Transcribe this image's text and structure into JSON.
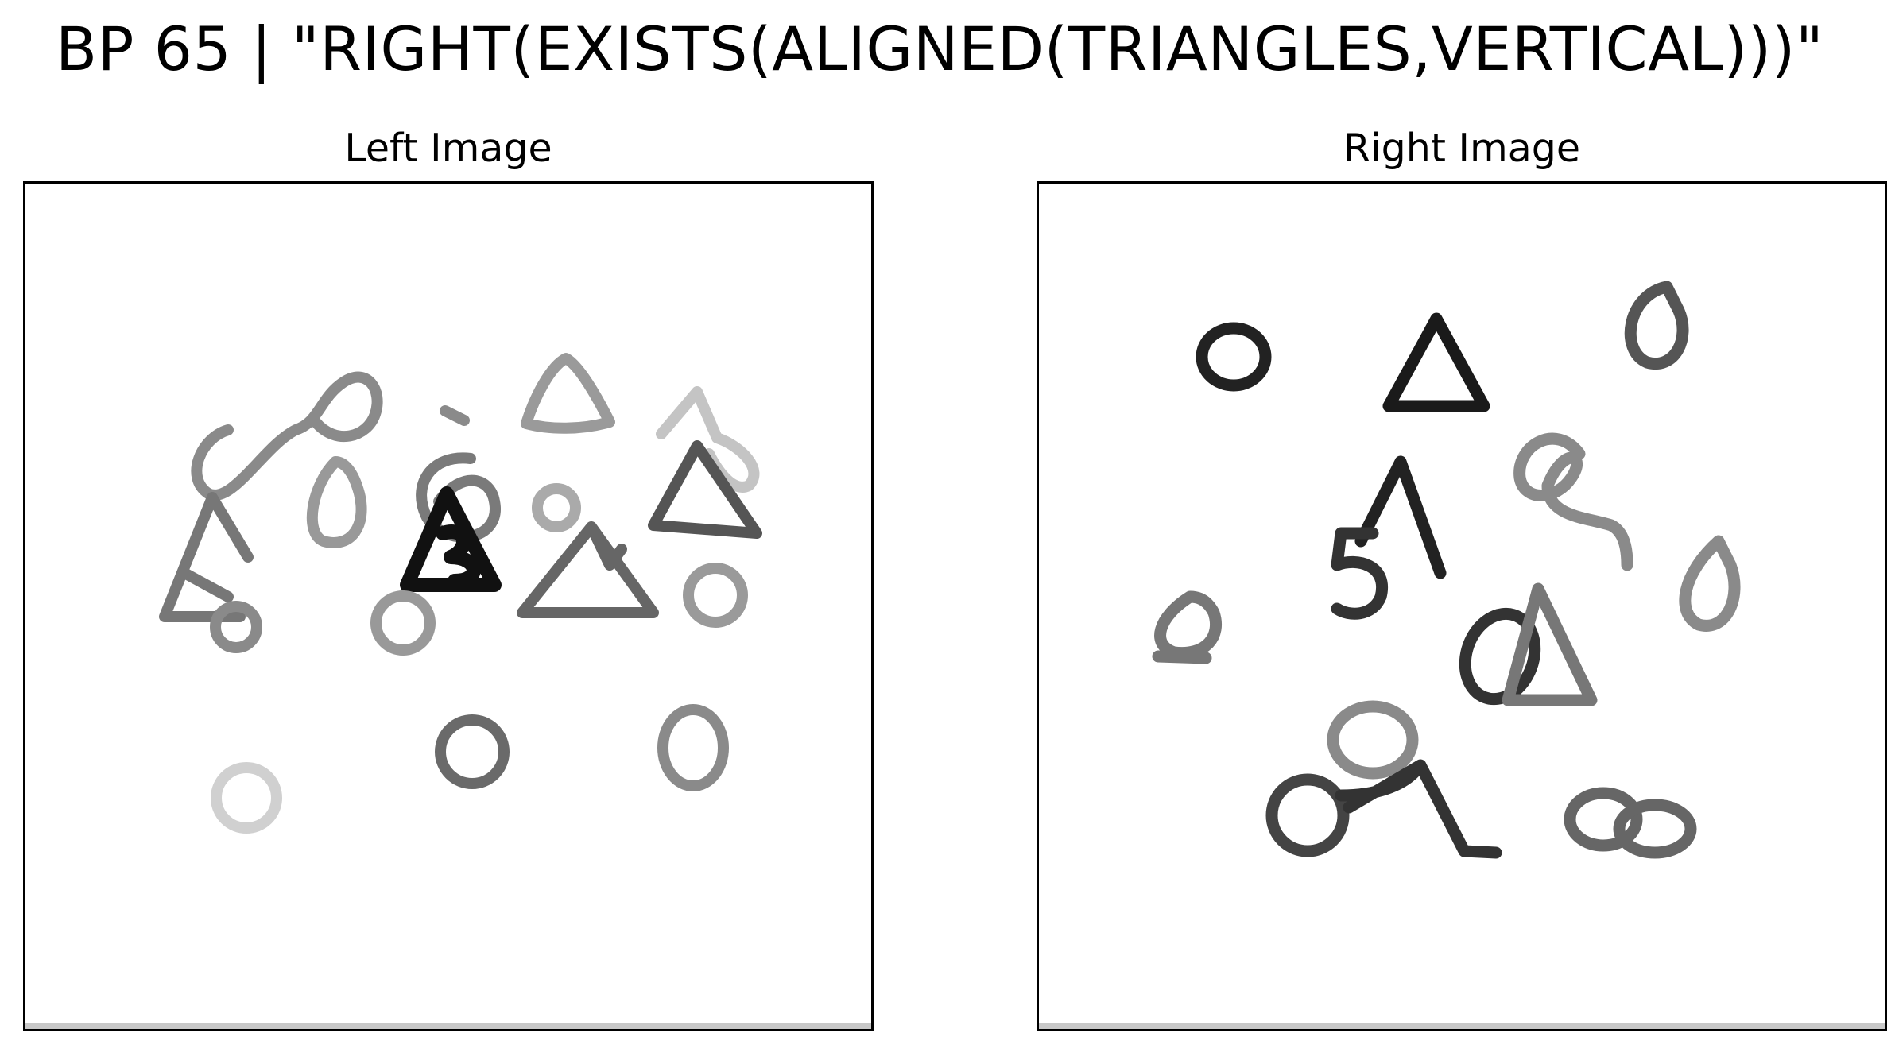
{
  "figure": {
    "title": "BP 65 | \"RIGHT(EXISTS(ALIGNED(TRIANGLES,VERTICAL)))\""
  },
  "panels": {
    "left": {
      "title": "Left Image"
    },
    "right": {
      "title": "Right Image"
    }
  }
}
